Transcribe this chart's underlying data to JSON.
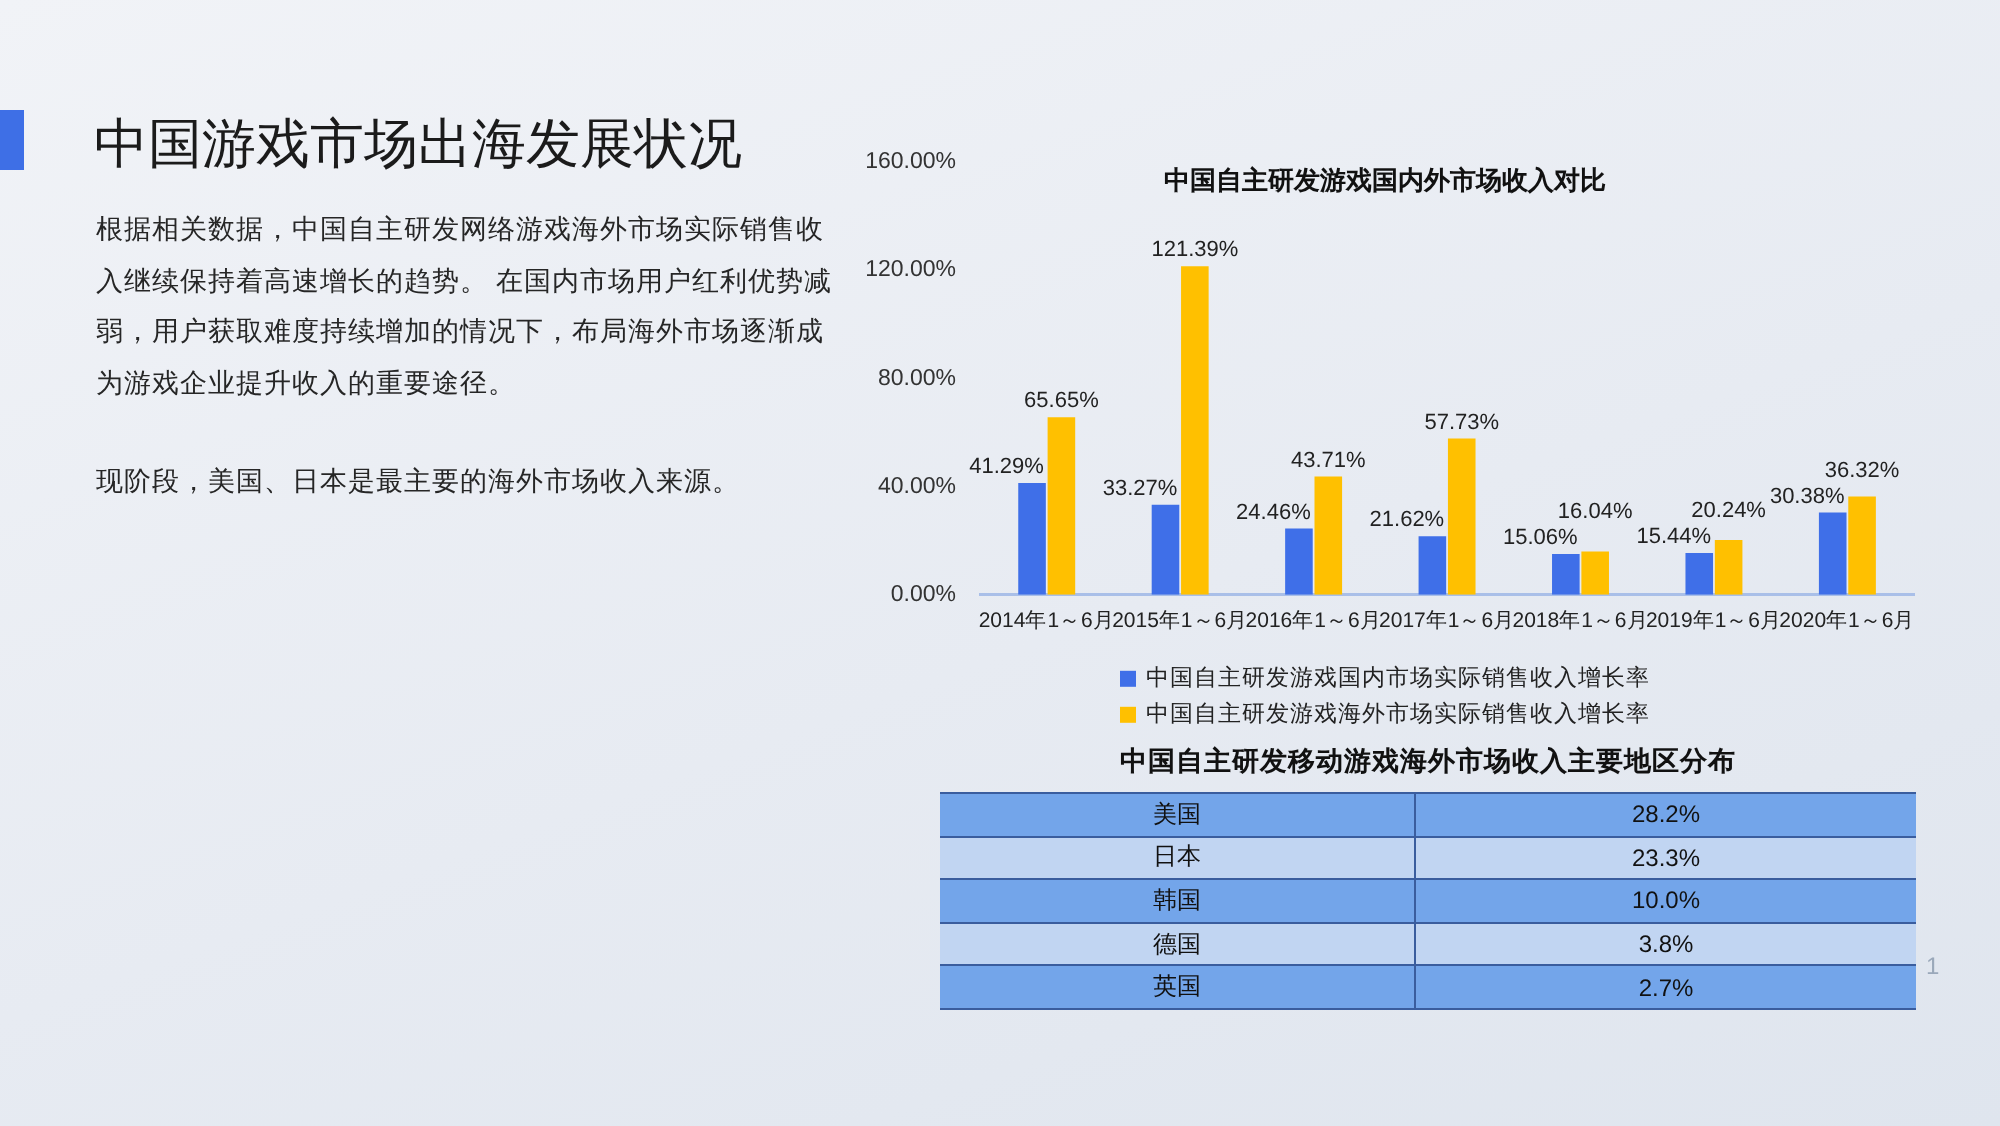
{
  "chart_data": [
    {
      "type": "other",
      "title": "中国游戏市场出海发展状况",
      "annotations": [
        "根据相关数据，中国自主研发网络游戏海外市场实际销售收入继续保持着高速增长的趋势。 在国内市场用户红利优势减弱，用户获取难度持续增加的情况下，布局海外市场逐渐成为游戏企业提升收入的重要途径。",
        "现阶段，美国、日本是最主要的海外市场收入来源。"
      ]
    },
    {
      "type": "bar",
      "title": "中国自主研发游戏国内外市场收入对比",
      "categories": [
        "2014年1～6月",
        "2015年1～6月",
        "2016年1～6月",
        "2017年1～6月",
        "2018年1～6月",
        "2019年1～6月",
        "2020年1～6月"
      ],
      "series": [
        {
          "name": "中国自主研发游戏国内市场实际销售收入增长率",
          "color": "#3f6fe8",
          "values": [
            41.29,
            33.27,
            24.46,
            21.62,
            15.06,
            15.44,
            30.38
          ],
          "value_labels": [
            "41.29%",
            "33.27%",
            "24.46%",
            "21.62%",
            "15.06%",
            "15.44%",
            "30.38%"
          ]
        },
        {
          "name": "中国自主研发游戏海外市场实际销售收入增长率",
          "color": "#ffc000",
          "values": [
            65.65,
            121.39,
            43.71,
            57.73,
            16.04,
            20.24,
            36.32
          ],
          "value_labels": [
            "65.65%",
            "121.39%",
            "43.71%",
            "57.73%",
            "16.04%",
            "20.24%",
            "36.32%"
          ]
        }
      ],
      "ylim": [
        0,
        160
      ],
      "yticks": [
        {
          "value": 0,
          "label": "0.00%"
        },
        {
          "value": 40,
          "label": "40.00%"
        },
        {
          "value": 80,
          "label": "80.00%"
        },
        {
          "value": 120,
          "label": "120.00%"
        },
        {
          "value": 160,
          "label": "160.00%"
        }
      ],
      "legend": "bottom"
    },
    {
      "type": "other",
      "title": "中国自主研发移动游戏海外市场收入主要地区分布",
      "categories": [
        "美国",
        "日本",
        "韩国",
        "德国",
        "英国"
      ],
      "values": [
        28.2,
        23.3,
        10.0,
        3.8,
        2.7
      ],
      "value_labels": [
        "28.2%",
        "23.3%",
        "10.0%",
        "3.8%",
        "2.7%"
      ],
      "annotations": [
        "1"
      ]
    }
  ]
}
